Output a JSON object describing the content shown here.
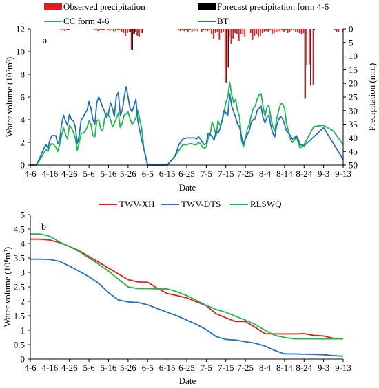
{
  "colors": {
    "observed": "#e8191c",
    "forecast": "#000000",
    "cc": "#1fb84b",
    "bt": "#1f6fc4",
    "twv_xh": "#e8191c",
    "twv_dts": "#1f6fc4",
    "rlswq": "#1fb84b"
  },
  "chart_data": [
    {
      "type": "line",
      "panel_label": "a",
      "xlabel": "Date",
      "ylabel": "Water volume (10⁶m³)",
      "y2label": "Precipitation (mm)",
      "ylim": [
        0,
        12
      ],
      "yticks": [
        "0",
        "2",
        "4",
        "6",
        "8",
        "10",
        "12"
      ],
      "y2lim": [
        0,
        50
      ],
      "y2_inverted": true,
      "y2ticks": [
        "0",
        "5",
        "10",
        "15",
        "20",
        "25",
        "30",
        "35",
        "40",
        "45",
        "50"
      ],
      "xticks": [
        "4-6",
        "4-16",
        "4-26",
        "5-6",
        "5-16",
        "5-26",
        "6-5",
        "6-15",
        "6-25",
        "7-5",
        "7-15",
        "7-25",
        "8-4",
        "8-14",
        "8-24",
        "9-3",
        "9-13"
      ],
      "xlim_days": [
        0,
        160
      ],
      "legend": [
        "Observed precipitation",
        "Forecast precipitation form 4-6",
        "CC form 4-6",
        "BT"
      ],
      "grid": false,
      "series": [
        {
          "name": "CC form 4-6",
          "kind": "line",
          "day": [
            0,
            3,
            5,
            7,
            8,
            9,
            10,
            11,
            12,
            13,
            14,
            15,
            16,
            17,
            18,
            19,
            20,
            21,
            22,
            23,
            24,
            25,
            26,
            27,
            28,
            29,
            30,
            31,
            32,
            33,
            34,
            35,
            36,
            37,
            38,
            39,
            40,
            41,
            42,
            43,
            44,
            45,
            46,
            47,
            48,
            49,
            50,
            51,
            52,
            53,
            54,
            55,
            56,
            57,
            58,
            60,
            62,
            65,
            70,
            74,
            76,
            78,
            80,
            82,
            84,
            85,
            86,
            87,
            88,
            89,
            90,
            91,
            92,
            93,
            94,
            95,
            96,
            97,
            98,
            99,
            100,
            101,
            102,
            103,
            104,
            105,
            106,
            107,
            108,
            109,
            110,
            111,
            112,
            113,
            114,
            115,
            116,
            117,
            118,
            119,
            120,
            121,
            122,
            123,
            124,
            125,
            126,
            127,
            128,
            129,
            130,
            131,
            132,
            133,
            134,
            135,
            136,
            137,
            138,
            140,
            145,
            150,
            155,
            160
          ],
          "value": [
            0,
            0,
            0.5,
            1.1,
            1.4,
            1.2,
            1.7,
            1.9,
            1.8,
            1.6,
            1.2,
            1.8,
            2.6,
            3.3,
            2.7,
            2.3,
            3.5,
            3.3,
            2.9,
            2.4,
            1.3,
            2.0,
            2.8,
            2.8,
            3.0,
            3.3,
            3.9,
            3.6,
            2.6,
            2.5,
            3.9,
            4.0,
            3.2,
            3.0,
            4.1,
            4.6,
            4.4,
            4.0,
            3.4,
            3.7,
            4.1,
            4.6,
            3.3,
            3.7,
            4.4,
            4.5,
            4.7,
            4.1,
            3.6,
            3.8,
            4.2,
            4.8,
            4.0,
            3.2,
            1.5,
            0,
            0,
            0,
            0,
            0.8,
            1.3,
            1.8,
            1.8,
            1.9,
            1.8,
            1.8,
            2.0,
            1.9,
            1.6,
            1.5,
            1.6,
            2.4,
            2.7,
            3.8,
            3.3,
            2.6,
            3.9,
            3.5,
            3.8,
            4.6,
            5.5,
            6.0,
            7.3,
            6.2,
            5.5,
            5.8,
            4.8,
            4.3,
            2.2,
            1.6,
            2.3,
            3.2,
            3.6,
            4.4,
            5.0,
            5.2,
            5.8,
            6.2,
            6.3,
            5.2,
            4.3,
            5.1,
            5.3,
            4.2,
            3.4,
            3.0,
            4.1,
            4.8,
            5.4,
            5.4,
            5.0,
            3.7,
            3.0,
            2.3,
            2.0,
            2.2,
            2.5,
            2.0,
            1.5,
            1.8,
            3.4,
            3.5,
            3.0,
            1.8,
            0,
            0,
            0,
            0
          ]
        },
        {
          "name": "BT",
          "kind": "line",
          "day": [
            0,
            3,
            5,
            7,
            8,
            9,
            10,
            11,
            12,
            13,
            14,
            15,
            16,
            17,
            18,
            19,
            20,
            21,
            22,
            23,
            24,
            25,
            26,
            27,
            28,
            29,
            30,
            31,
            32,
            33,
            34,
            35,
            36,
            37,
            38,
            39,
            40,
            41,
            42,
            43,
            44,
            45,
            46,
            47,
            48,
            49,
            50,
            51,
            52,
            53,
            54,
            55,
            56,
            57,
            58,
            60,
            62,
            65,
            70,
            74,
            76,
            78,
            80,
            82,
            84,
            85,
            86,
            87,
            88,
            89,
            90,
            91,
            92,
            93,
            94,
            95,
            96,
            97,
            98,
            99,
            100,
            101,
            102,
            103,
            104,
            105,
            106,
            107,
            108,
            109,
            110,
            111,
            112,
            113,
            114,
            115,
            116,
            117,
            118,
            119,
            120,
            121,
            122,
            123,
            124,
            125,
            126,
            127,
            128,
            129,
            130,
            131,
            132,
            133,
            134,
            135,
            136,
            137,
            138,
            140,
            145,
            150,
            155,
            160
          ],
          "value": [
            0,
            0,
            0.7,
            1.5,
            1.8,
            1.5,
            2.2,
            2.6,
            2.6,
            2.6,
            1.9,
            2.2,
            3.6,
            4.4,
            3.9,
            3.5,
            4.5,
            4.0,
            3.9,
            3.4,
            1.9,
            2.6,
            4.0,
            4.2,
            4.6,
            4.8,
            5.6,
            5.0,
            4.0,
            3.6,
            5.5,
            6.0,
            5.6,
            5.1,
            4.7,
            4.2,
            4.6,
            5.5,
            5.0,
            4.3,
            6.1,
            6.4,
            4.4,
            4.8,
            6.0,
            6.9,
            6.0,
            5.0,
            4.7,
            5.2,
            5.8,
            3.9,
            3.0,
            2.2,
            1.5,
            0,
            0,
            0,
            0,
            0.8,
            1.8,
            2.3,
            2.4,
            2.4,
            2.4,
            2.3,
            2.5,
            2.3,
            2.0,
            1.8,
            1.9,
            2.8,
            2.7,
            2.5,
            2.2,
            3.0,
            2.8,
            3.2,
            3.9,
            4.8,
            4.6,
            4.4,
            6.3,
            5.2,
            4.7,
            4.2,
            3.6,
            3.4,
            2.5,
            1.9,
            2.3,
            2.7,
            3.0,
            3.8,
            4.0,
            4.1,
            4.8,
            5.0,
            5.2,
            4.2,
            3.7,
            4.2,
            4.4,
            3.5,
            2.8,
            2.5,
            3.5,
            4.0,
            4.3,
            4.1,
            3.6,
            3.0,
            2.8,
            2.6,
            2.3,
            2.4,
            2.6,
            2.3,
            1.8,
            1.7,
            2.5,
            3.3,
            1.9,
            0.5,
            0,
            0,
            0,
            0
          ]
        },
        {
          "name": "Observed precipitation",
          "kind": "bar_inverted",
          "day": [
            16,
            17,
            18,
            19,
            20,
            33,
            34,
            35,
            36,
            37,
            38,
            40,
            41,
            42,
            43,
            44,
            45,
            46,
            47,
            48,
            49,
            50,
            51,
            52,
            53,
            54,
            55,
            56,
            57,
            76,
            77,
            78,
            79,
            80,
            81,
            82,
            83,
            84,
            85,
            86,
            88,
            89,
            90,
            91,
            92,
            93,
            94,
            95,
            96,
            97,
            98,
            99,
            100,
            101,
            102,
            103,
            104,
            105,
            106,
            107,
            108,
            109,
            110,
            113,
            114,
            115,
            116,
            117,
            118,
            119,
            120,
            121,
            122,
            123,
            124,
            125,
            126,
            127,
            128,
            129,
            130,
            131,
            132,
            133,
            134,
            135,
            136,
            137,
            138,
            139,
            140,
            141,
            143,
            145,
            156,
            157,
            158,
            160
          ],
          "value": [
            0.5,
            0.5,
            0.8,
            0.5,
            0.5,
            0.3,
            0.5,
            0.8,
            0.5,
            0.3,
            0.5,
            0.5,
            0.8,
            0.5,
            1.0,
            0.8,
            0.5,
            0.5,
            1.0,
            1.5,
            2.5,
            1.5,
            1.0,
            7.5,
            2.0,
            1.0,
            2.5,
            3.0,
            1.5,
            0.5,
            0.8,
            0.5,
            0.8,
            0.5,
            1.0,
            0.5,
            1.0,
            0.8,
            0.5,
            0.8,
            1.0,
            0.5,
            0.5,
            0.8,
            0.5,
            2.0,
            3.5,
            1.5,
            1.0,
            4.0,
            1.5,
            1.0,
            19.5,
            14.0,
            3.0,
            5.5,
            3.5,
            1.5,
            2.0,
            4.5,
            2.0,
            2.0,
            3.0,
            1.5,
            4.0,
            2.5,
            2.0,
            3.0,
            2.5,
            1.5,
            1.0,
            0.8,
            1.0,
            0.5,
            2.0,
            1.5,
            1.0,
            1.0,
            0.8,
            0.5,
            1.0,
            0.5,
            1.5,
            1.0,
            0.5,
            0.5,
            1.0,
            1.0,
            1.5,
            2.0,
            1.5,
            25.5,
            13.0,
            20.5,
            0.5,
            1.0,
            1.0,
            1.0
          ]
        },
        {
          "name": "Forecast precipitation form 4-6",
          "kind": "bar_inverted",
          "day": [
            51,
            52,
            53,
            55,
            57,
            100,
            101,
            140,
            141,
            143,
            145
          ],
          "value": [
            1.0,
            7.8,
            2.0,
            2.5,
            1.5,
            19.8,
            14.3,
            25.8,
            13.3,
            20.8,
            0.5
          ]
        }
      ]
    },
    {
      "type": "line",
      "panel_label": "b",
      "xlabel": "Date",
      "ylabel": "Water volume (10⁸m³)",
      "ylim": [
        0,
        5
      ],
      "yticks": [
        "0",
        "0.5",
        "1",
        "1.5",
        "2",
        "2.5",
        "3",
        "3.5",
        "4",
        "4.5",
        "5"
      ],
      "xticks": [
        "4-6",
        "4-16",
        "4-26",
        "5-6",
        "5-16",
        "5-26",
        "6-5",
        "6-15",
        "6-25",
        "7-5",
        "7-15",
        "7-25",
        "8-4",
        "8-14",
        "8-24",
        "9-3",
        "9-13"
      ],
      "xlim_days": [
        0,
        160
      ],
      "legend": [
        "TWV-XH",
        "TWV-DTS",
        "RLSWQ"
      ],
      "grid": false,
      "series": [
        {
          "name": "TWV-XH",
          "kind": "line",
          "day": [
            0,
            5,
            10,
            15,
            20,
            25,
            30,
            35,
            40,
            45,
            50,
            55,
            60,
            65,
            70,
            75,
            80,
            85,
            90,
            95,
            100,
            105,
            110,
            115,
            120,
            125,
            130,
            135,
            140,
            145,
            150,
            155,
            160
          ],
          "value": [
            4.15,
            4.15,
            4.12,
            4.03,
            3.9,
            3.75,
            3.55,
            3.35,
            3.15,
            2.95,
            2.75,
            2.67,
            2.66,
            2.45,
            2.27,
            2.2,
            2.12,
            1.98,
            1.85,
            1.57,
            1.43,
            1.3,
            1.3,
            1.1,
            0.88,
            0.87,
            0.87,
            0.87,
            0.88,
            0.82,
            0.8,
            0.72,
            0.7
          ]
        },
        {
          "name": "TWV-DTS",
          "kind": "line",
          "day": [
            0,
            5,
            10,
            15,
            20,
            25,
            30,
            35,
            40,
            45,
            50,
            55,
            60,
            65,
            70,
            75,
            80,
            85,
            90,
            95,
            100,
            105,
            110,
            115,
            120,
            125,
            130,
            135,
            140,
            145,
            150,
            155,
            160
          ],
          "value": [
            3.46,
            3.46,
            3.45,
            3.38,
            3.22,
            3.04,
            2.85,
            2.62,
            2.3,
            2.05,
            1.98,
            1.96,
            1.88,
            1.75,
            1.62,
            1.5,
            1.35,
            1.2,
            1.02,
            0.78,
            0.68,
            0.66,
            0.6,
            0.55,
            0.45,
            0.3,
            0.18,
            0.18,
            0.17,
            0.16,
            0.15,
            0.12,
            0.1
          ]
        },
        {
          "name": "RLSWQ",
          "kind": "line",
          "day": [
            0,
            5,
            10,
            15,
            20,
            25,
            30,
            35,
            40,
            45,
            50,
            55,
            60,
            65,
            70,
            75,
            80,
            85,
            90,
            95,
            100,
            105,
            110,
            115,
            120,
            125,
            130,
            135,
            140,
            145,
            150,
            155,
            160
          ],
          "value": [
            4.33,
            4.33,
            4.25,
            4.05,
            3.9,
            3.72,
            3.5,
            3.28,
            3.05,
            2.77,
            2.5,
            2.44,
            2.44,
            2.43,
            2.43,
            2.33,
            2.2,
            2.03,
            1.86,
            1.72,
            1.62,
            1.48,
            1.35,
            1.2,
            1.0,
            0.82,
            0.75,
            0.7,
            0.7,
            0.7,
            0.7,
            0.7,
            0.7
          ]
        }
      ]
    }
  ]
}
